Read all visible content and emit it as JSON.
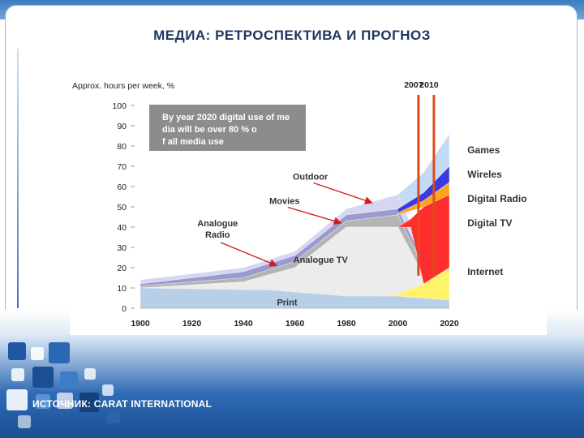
{
  "slide": {
    "title": "МЕДИА: РЕТРОСПЕКТИВА И ПРОГНОЗ",
    "source": "ИСТОЧНИК: CARAT INTERNATIONAL"
  },
  "chart_data": {
    "type": "area",
    "ylabel": "Approx. hours per week, %",
    "ylim": [
      0,
      100
    ],
    "xlim": [
      1900,
      2020
    ],
    "y_ticks": [
      0,
      10,
      20,
      30,
      40,
      50,
      60,
      70,
      80,
      90,
      100
    ],
    "x_ticks": [
      1900,
      1920,
      1940,
      1960,
      1980,
      2000,
      2020
    ],
    "markers": [
      {
        "label": "2007",
        "x": 2008
      },
      {
        "label": "2010",
        "x": 2014
      }
    ],
    "annotation": "By year 2020 digital use of media will be over 80 % of all media use",
    "colors": {
      "print": "#b8cfe8",
      "analogue_tv": "#ececec",
      "analogue_radio": "#b4b4b4",
      "movies": "#9a9ad2",
      "outdoor": "#d6d6f0",
      "internet": "#fff36a",
      "digital_tv": "#ff2e2e",
      "digital_radio": "#ffa31a",
      "wireless": "#3a3ae0",
      "games": "#b9d4f4",
      "marker": "#e04a1a",
      "arrow": "#d41c1c",
      "callout": "#8c8c8c"
    },
    "series": [
      {
        "name": "Print",
        "x": [
          1900,
          1950,
          1980,
          2000,
          2010,
          2020
        ],
        "upper": [
          10,
          9,
          6,
          6,
          5,
          4
        ]
      },
      {
        "name": "Analogue TV",
        "x": [
          1900,
          1940,
          1960,
          1980,
          2000,
          2010,
          2020
        ],
        "lower": [
          10,
          8,
          7,
          6,
          6,
          5,
          4
        ],
        "upper": [
          10,
          13,
          20,
          40,
          40,
          16,
          6
        ]
      },
      {
        "name": "Analogue Radio",
        "x": [
          1900,
          1940,
          1960,
          1980,
          2000,
          2010,
          2020
        ],
        "lower": [
          10,
          13,
          20,
          40,
          40,
          16,
          6
        ],
        "upper": [
          11,
          15,
          23,
          43,
          46,
          20,
          8
        ]
      },
      {
        "name": "Movies",
        "x": [
          1900,
          1940,
          1960,
          1980,
          2000,
          2010,
          2020
        ],
        "lower": [
          11,
          15,
          23,
          43,
          46,
          20,
          8
        ],
        "upper": [
          12,
          18,
          26,
          46,
          49,
          23,
          10
        ]
      },
      {
        "name": "Outdoor",
        "x": [
          1900,
          1940,
          1960,
          1980,
          2000,
          2010,
          2020
        ],
        "lower": [
          12,
          18,
          26,
          46,
          49,
          23,
          10
        ],
        "upper": [
          14,
          20,
          28,
          49,
          56,
          27,
          12
        ]
      },
      {
        "name": "Internet",
        "x": [
          1990,
          2000,
          2010,
          2020
        ],
        "lower": [
          6,
          6,
          5,
          4
        ],
        "upper": [
          6,
          7,
          12,
          20
        ]
      },
      {
        "name": "Digital TV",
        "x": [
          2000,
          2005,
          2010,
          2020
        ],
        "lower": [
          40,
          40,
          12,
          20
        ],
        "upper": [
          40,
          44,
          50,
          56
        ]
      },
      {
        "name": "Digital Radio",
        "x": [
          2000,
          2010,
          2020
        ],
        "lower": [
          46,
          50,
          56
        ],
        "upper": [
          47,
          53,
          62
        ]
      },
      {
        "name": "Wireles",
        "x": [
          2000,
          2010,
          2020
        ],
        "lower": [
          47,
          53,
          62
        ],
        "upper": [
          49,
          57,
          70
        ]
      },
      {
        "name": "Games",
        "x": [
          2000,
          2010,
          2020
        ],
        "lower": [
          49,
          57,
          70
        ],
        "upper": [
          56,
          67,
          86
        ]
      }
    ],
    "labels": [
      {
        "id": "games",
        "text": "Games",
        "x": 2027,
        "y": 78,
        "arrow": false
      },
      {
        "id": "wireles",
        "text": "Wireles",
        "x": 2027,
        "y": 66,
        "arrow": false
      },
      {
        "id": "digital-radio",
        "text": "Digital Radio",
        "x": 2027,
        "y": 54,
        "arrow": false
      },
      {
        "id": "digital-tv",
        "text": "Digital TV",
        "x": 2027,
        "y": 42,
        "arrow": false
      },
      {
        "id": "internet",
        "text": "Internet",
        "x": 2027,
        "y": 18,
        "arrow": false
      },
      {
        "id": "outdoor",
        "text": "Outdoor",
        "x": 1966,
        "y": 65,
        "arrow": true,
        "ax": 1990,
        "ay": 52
      },
      {
        "id": "movies",
        "text": "Movies",
        "x": 1956,
        "y": 53,
        "arrow": true,
        "ax": 1978,
        "ay": 42
      },
      {
        "id": "analogue-radio",
        "text": "Analogue",
        "text2": "Radio",
        "x": 1930,
        "y": 38,
        "arrow": true,
        "ax": 1953,
        "ay": 21
      },
      {
        "id": "analogue-tv",
        "text": "Analogue TV",
        "x": 1970,
        "y": 24,
        "arrow": false
      },
      {
        "id": "print",
        "text": "Print",
        "x": 1957,
        "y": 3,
        "arrow": false
      }
    ]
  }
}
